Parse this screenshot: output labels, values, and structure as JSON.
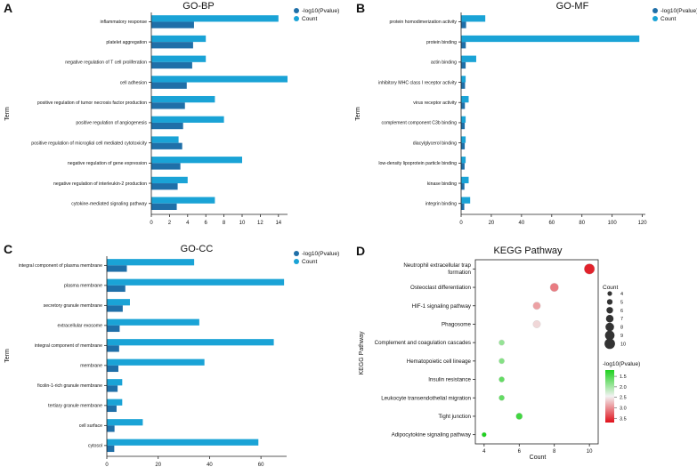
{
  "colors": {
    "pvalue_bar": "#1f6fa8",
    "count_bar": "#1aa3d6",
    "axis": "#222222",
    "grad_low": "#1fd11f",
    "grad_mid": "#f2f2f2",
    "grad_high": "#e0101a",
    "bubble_edge": "#999999"
  },
  "chart_data": [
    {
      "panel_letter": "A",
      "type": "bar",
      "orientation": "horizontal",
      "title": "GO-BP",
      "xlabel": "",
      "ylabel": "Term",
      "xlim": [
        0,
        15
      ],
      "xticks": [
        0,
        2,
        4,
        6,
        8,
        10,
        12,
        14
      ],
      "legend": [
        "-log10(Pvalue)",
        "Count"
      ],
      "categories": [
        "inflammatory response",
        "platelet aggregation",
        "negative regulation of T cell proliferation",
        "cell adhesion",
        "positive regulation of tumor necrosis factor production",
        "positive regulation of angiogenesis",
        "positive regulation of microglial cell mediated cytotoxicity",
        "negative regulation of gene expression",
        "negative regulation of interleukin-2 production",
        "cytokine-mediated signaling pathway"
      ],
      "series": [
        {
          "name": "Count",
          "values": [
            14,
            6,
            6,
            15,
            7,
            8,
            3,
            10,
            4,
            7
          ]
        },
        {
          "name": "-log10(Pvalue)",
          "values": [
            4.7,
            4.6,
            4.5,
            3.9,
            3.7,
            3.5,
            3.4,
            3.2,
            2.9,
            2.8
          ]
        }
      ]
    },
    {
      "panel_letter": "B",
      "type": "bar",
      "orientation": "horizontal",
      "title": "GO-MF",
      "xlabel": "",
      "ylabel": "Term",
      "xlim": [
        0,
        122
      ],
      "xticks": [
        0,
        20,
        40,
        60,
        80,
        100,
        120
      ],
      "legend": [
        "-log10(Pvalue)",
        "Count"
      ],
      "categories": [
        "protein homodimerization activity",
        "protein binding",
        "actin binding",
        "inhibitory MHC class I receptor activity",
        "virus receptor activity",
        "complement component C3b binding",
        "diacylglycerol binding",
        "low-density lipoprotein particle binding",
        "kinase binding",
        "integrin binding"
      ],
      "series": [
        {
          "name": "Count",
          "values": [
            16,
            118,
            10,
            3,
            5,
            3,
            3,
            3,
            5,
            6
          ]
        },
        {
          "name": "-log10(Pvalue)",
          "values": [
            3.3,
            3.1,
            3.0,
            2.6,
            2.5,
            2.4,
            2.4,
            2.3,
            2.2,
            2.1
          ]
        }
      ]
    },
    {
      "panel_letter": "C",
      "type": "bar",
      "orientation": "horizontal",
      "title": "GO-CC",
      "xlabel": "",
      "ylabel": "Term",
      "xlim": [
        0,
        70
      ],
      "xticks": [
        0,
        20,
        40,
        60
      ],
      "legend": [
        "-log10(Pvalue)",
        "Count"
      ],
      "categories": [
        "integral component of plasma membrane",
        "plasma membrane",
        "secretory granule membrane",
        "extracellular exosome",
        "integral component of membrane",
        "membrane",
        "ficolin-1-rich granule membrane",
        "tertiary granule membrane",
        "cell surface",
        "cytosol"
      ],
      "series": [
        {
          "name": "Count",
          "values": [
            34,
            69,
            9,
            36,
            65,
            38,
            6,
            6,
            14,
            59
          ]
        },
        {
          "name": "-log10(Pvalue)",
          "values": [
            7.8,
            7.2,
            6.2,
            5.0,
            4.8,
            4.5,
            4.2,
            3.8,
            3.0,
            2.9
          ]
        }
      ]
    },
    {
      "panel_letter": "D",
      "type": "scatter",
      "title": "KEGG Pathway",
      "xlabel": "Count",
      "ylabel": "KEGG Pathway",
      "xlim": [
        3.5,
        10.5
      ],
      "xticks": [
        4,
        6,
        8,
        10
      ],
      "categories": [
        "Neutrophil extracellular trap formation",
        "Osteoclast differentiation",
        "HIF-1 signaling pathway",
        "Phagosome",
        "Complement and coagulation cascades",
        "Hematopoietic cell lineage",
        "Insulin resistance",
        "Leukocyte transendothelial migration",
        "Tight junction",
        "Adipocytokine signaling pathway"
      ],
      "counts": [
        10,
        8,
        7,
        7,
        5,
        5,
        5,
        5,
        6,
        4
      ],
      "neglog10_pvalue": [
        3.6,
        3.1,
        2.9,
        2.6,
        1.9,
        1.8,
        1.6,
        1.6,
        1.4,
        1.2
      ],
      "size_legend": {
        "title": "Count",
        "values": [
          4,
          5,
          6,
          7,
          8,
          9,
          10
        ]
      },
      "color_legend": {
        "title": "-log10(Pvalue)",
        "ticks": [
          "1.5",
          "2.0",
          "2.5",
          "3.0",
          "3.5"
        ],
        "range": [
          1.2,
          3.7
        ]
      }
    }
  ]
}
